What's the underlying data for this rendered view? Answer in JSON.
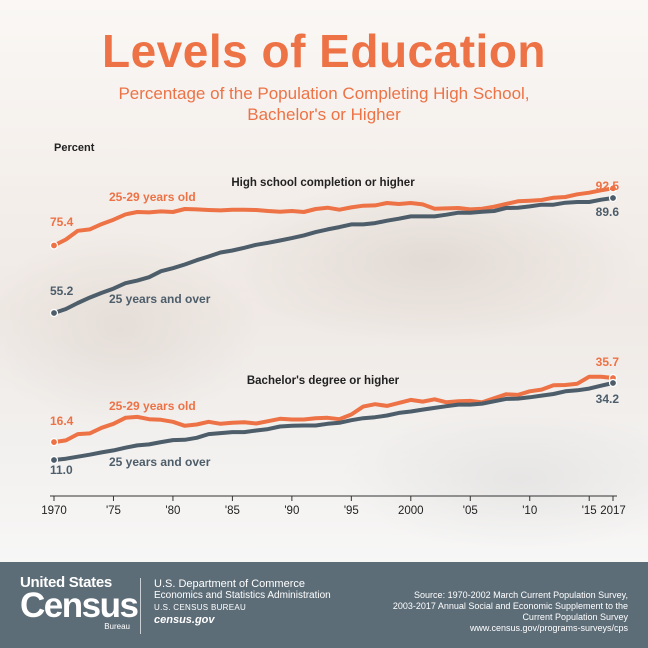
{
  "header": {
    "title": "Levels of Education",
    "subtitle": "Percentage of the Population Completing High School, Bachelor's or Higher"
  },
  "chart_data": {
    "type": "line",
    "ylabel": "Percent",
    "xlim": [
      1970,
      2017
    ],
    "x": [
      1970,
      1971,
      1972,
      1973,
      1974,
      1975,
      1976,
      1977,
      1978,
      1979,
      1980,
      1981,
      1982,
      1983,
      1984,
      1985,
      1986,
      1987,
      1988,
      1989,
      1990,
      1991,
      1992,
      1993,
      1994,
      1995,
      1996,
      1997,
      1998,
      1999,
      2000,
      2001,
      2002,
      2003,
      2004,
      2005,
      2006,
      2007,
      2008,
      2009,
      2010,
      2011,
      2012,
      2013,
      2014,
      2015,
      2016,
      2017
    ],
    "x_ticks": [
      {
        "value": 1970,
        "label": "1970"
      },
      {
        "value": 1975,
        "label": "'75"
      },
      {
        "value": 1980,
        "label": "'80"
      },
      {
        "value": 1985,
        "label": "'85"
      },
      {
        "value": 1990,
        "label": "'90"
      },
      {
        "value": 1995,
        "label": "'95"
      },
      {
        "value": 2000,
        "label": "2000"
      },
      {
        "value": 2005,
        "label": "'05"
      },
      {
        "value": 2010,
        "label": "'10"
      },
      {
        "value": 2015,
        "label": "'15"
      },
      {
        "value": 2017,
        "label": "2017"
      }
    ],
    "panels": [
      {
        "title": "High school completion or higher",
        "series": [
          {
            "name": "25-29 years old",
            "color": "#ed7245",
            "values": [
              75.4,
              77.2,
              79.8,
              80.2,
              81.8,
              83.1,
              84.7,
              85.4,
              85.3,
              85.6,
              85.4,
              86.3,
              86.2,
              86.0,
              85.9,
              86.1,
              86.1,
              86.0,
              85.7,
              85.5,
              85.7,
              85.4,
              86.3,
              86.7,
              86.1,
              86.8,
              87.3,
              87.4,
              88.1,
              87.8,
              88.1,
              87.7,
              86.4,
              86.5,
              86.6,
              86.2,
              86.4,
              87.0,
              87.8,
              88.6,
              88.8,
              89.0,
              89.7,
              89.9,
              90.7,
              91.2,
              91.9,
              92.5
            ],
            "start_label": "75.4",
            "end_label": "92.5"
          },
          {
            "name": "25 years and over",
            "color": "#4d5d6a",
            "values": [
              55.2,
              56.4,
              58.2,
              59.8,
              61.2,
              62.5,
              64.1,
              64.9,
              65.9,
              67.7,
              68.6,
              69.7,
              71.0,
              72.1,
              73.3,
              73.9,
              74.7,
              75.6,
              76.2,
              76.9,
              77.6,
              78.4,
              79.4,
              80.2,
              80.9,
              81.7,
              81.7,
              82.1,
              82.8,
              83.4,
              84.1,
              84.1,
              84.1,
              84.6,
              85.2,
              85.2,
              85.5,
              85.7,
              86.6,
              86.7,
              87.1,
              87.6,
              87.6,
              88.2,
              88.4,
              88.4,
              89.1,
              89.6
            ],
            "start_label": "55.2",
            "end_label": "89.6"
          }
        ]
      },
      {
        "title": "Bachelor's degree or higher",
        "series": [
          {
            "name": "25-29 years old",
            "color": "#ed7245",
            "values": [
              16.4,
              16.9,
              18.8,
              19.0,
              20.7,
              21.9,
              23.7,
              24.0,
              23.3,
              23.1,
              22.5,
              21.3,
              21.7,
              22.5,
              21.9,
              22.2,
              22.4,
              22.0,
              22.7,
              23.4,
              23.2,
              23.2,
              23.6,
              23.7,
              23.3,
              24.7,
              27.1,
              27.8,
              27.3,
              28.2,
              29.1,
              28.6,
              29.3,
              28.4,
              28.7,
              28.8,
              28.4,
              29.6,
              30.8,
              30.6,
              31.7,
              32.2,
              33.5,
              33.6,
              34.0,
              36.1,
              36.1,
              35.7
            ],
            "start_label": "16.4",
            "end_label": "35.7"
          },
          {
            "name": "25 years and over",
            "color": "#4d5d6a",
            "values": [
              11.0,
              11.4,
              12.0,
              12.6,
              13.3,
              13.9,
              14.7,
              15.4,
              15.7,
              16.4,
              17.0,
              17.1,
              17.7,
              18.8,
              19.1,
              19.4,
              19.4,
              19.9,
              20.3,
              21.1,
              21.3,
              21.4,
              21.4,
              21.9,
              22.2,
              23.0,
              23.6,
              23.9,
              24.4,
              25.2,
              25.6,
              26.2,
              26.7,
              27.2,
              27.7,
              27.7,
              28.0,
              28.7,
              29.4,
              29.5,
              29.9,
              30.4,
              30.9,
              31.7,
              32.0,
              32.5,
              33.4,
              34.2
            ],
            "start_label": "11.0",
            "end_label": "34.2"
          }
        ]
      }
    ]
  },
  "footer": {
    "logo": {
      "top": "United States",
      "main": "Census",
      "bottom": "Bureau"
    },
    "dept": [
      "U.S. Department of Commerce",
      "Economics and Statistics Administration",
      "U.S. CENSUS BUREAU",
      "census.gov"
    ],
    "source": [
      "Source: 1970-2002 March Current Population Survey,",
      "2003-2017 Annual Social and Economic Supplement to the",
      "Current Population Survey",
      "www.census.gov/programs-surveys/cps"
    ]
  }
}
